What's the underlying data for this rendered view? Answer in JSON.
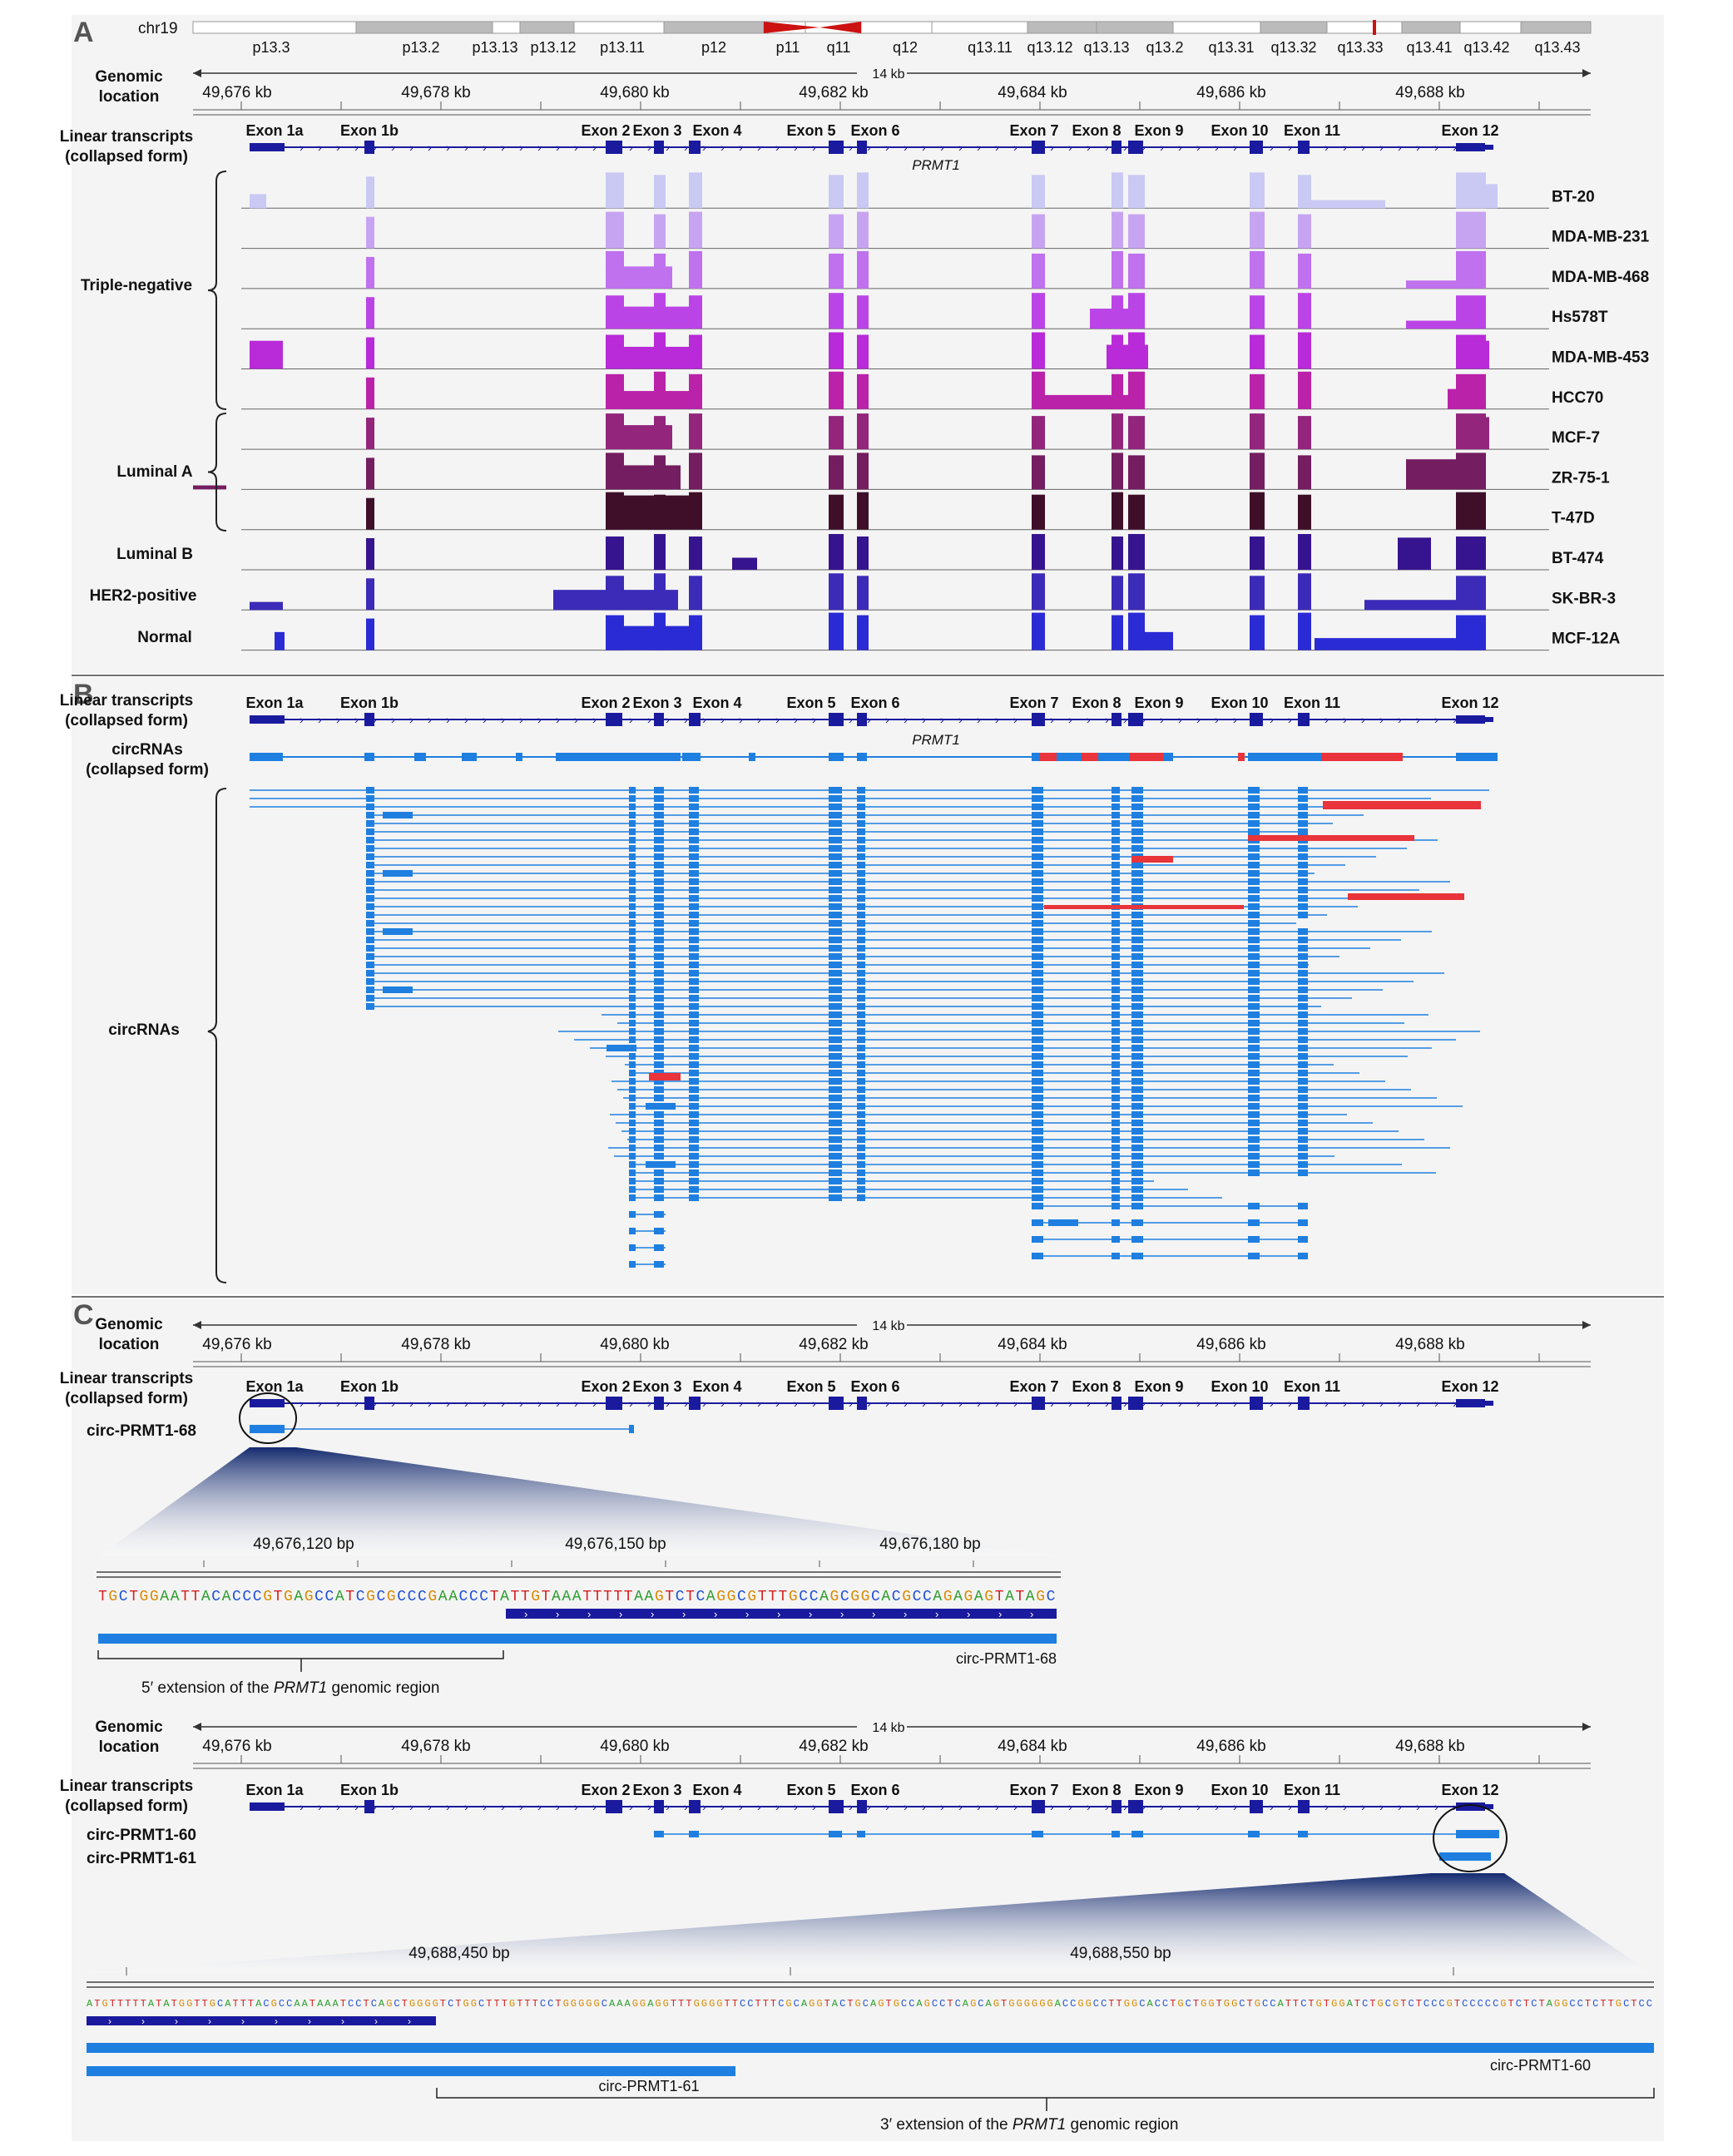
{
  "panels": {
    "a": "A",
    "b": "B",
    "c": "C"
  },
  "chromosome": {
    "name": "chr19",
    "bands": [
      "p13.3",
      "p13.2",
      "p13.13",
      "p13.12",
      "p13.11",
      "p12",
      "p11",
      "q11",
      "q12",
      "q13.11",
      "q13.12",
      "q13.13",
      "q13.2",
      "q13.31",
      "q13.32",
      "q13.33",
      "q13.41",
      "q13.42",
      "q13.43"
    ]
  },
  "labels": {
    "genomic_location": [
      "Genomic",
      "location"
    ],
    "linear_transcripts": [
      "Linear transcripts",
      "(collapsed form)"
    ],
    "circrnas_collapsed": [
      "circRNAs",
      "(collapsed form)"
    ],
    "circrnas": "circRNAs",
    "gene": "PRMT1",
    "span": "14 kb"
  },
  "ruler_ticks": [
    "49,676 kb",
    "49,678 kb",
    "49,680 kb",
    "49,682 kb",
    "49,684 kb",
    "49,686 kb",
    "49,688 kb"
  ],
  "exons": [
    "Exon 1a",
    "Exon 1b",
    "Exon 2",
    "Exon 3",
    "Exon 4",
    "Exon 5",
    "Exon 6",
    "Exon 7",
    "Exon 8",
    "Exon 9",
    "Exon 10",
    "Exon 11",
    "Exon 12"
  ],
  "groups": [
    "Triple-negative",
    "Luminal A",
    "Luminal B",
    "HER2-positive",
    "Normal"
  ],
  "cell_lines": [
    "BT-20",
    "MDA-MB-231",
    "MDA-MB-468",
    "Hs578T",
    "MDA-MB-453",
    "HCC70",
    "MCF-7",
    "ZR-75-1",
    "T-47D",
    "BT-474",
    "SK-BR-3",
    "MCF-12A"
  ],
  "panel_c": {
    "circ1": "circ-PRMT1-68",
    "zoom1_ticks": [
      "49,676,120 bp",
      "49,676,150 bp",
      "49,676,180 bp"
    ],
    "zoom1_seq": "TGCTGGAATTACACCCGTGAGCCATCGCGCCCGAACCCTATTGTAAATTTTTAAGTCTCAGGCGTTTGCCAGCGGCACGCCAGAGAGTATAGC",
    "zoom1_bar_label": "circ-PRMT1-68",
    "ext5_pre": "5′ extension of the ",
    "ext5_gene": "PRMT1",
    "ext5_post": " genomic region",
    "circ2a": "circ-PRMT1-60",
    "circ2b": "circ-PRMT1-61",
    "zoom2_ticks": [
      "49,688,450 bp",
      "49,688,550 bp"
    ],
    "zoom2_seq": "ATGTTTTTATATGGTTGCATTTACGCCAATAAATCCTCAGCTGGGGTCTGGCTTTGTTTCCTGGGGGCAAAGGAGGTTTGGGGTTCCTTTCGCAGGTACTGCAGTGCCAGCCTCAGCAGTGGGGGGACCGGCCTTGGCACCTGCTGGTGGCTGCCATTCTGTGGATCTGCGTCTCCCGTCCCCCGTCTCTAGGCCTCTTGCTCC",
    "zoom2_bar60": "circ-PRMT1-60",
    "zoom2_bar61": "circ-PRMT1-61",
    "ext3_pre": "3′ extension of the ",
    "ext3_gene": "PRMT1",
    "ext3_post": " genomic region"
  },
  "colors": {
    "exon_dark": "#1a1a9e",
    "circ_blue": "#1e7fe0",
    "circ_red": "#e8343a",
    "panel_bg": "#f4f4f4",
    "ideogram_centromere": "#cc1111"
  }
}
